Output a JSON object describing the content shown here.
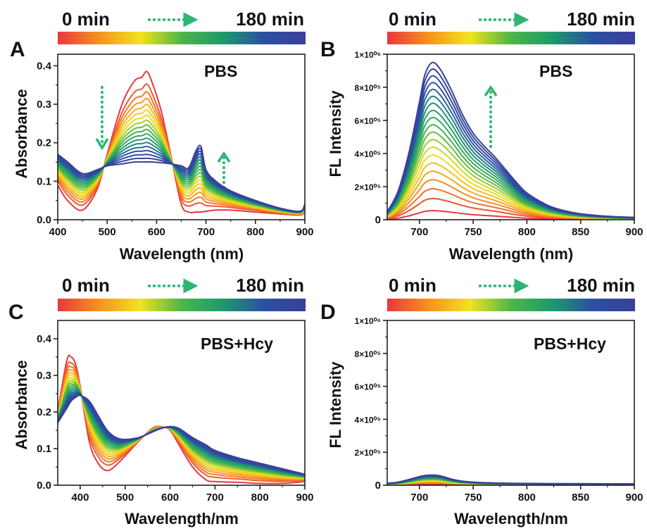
{
  "panels": [
    {
      "letter": "A",
      "start_label": "0 min",
      "end_label": "180 min",
      "annotation": "PBS"
    },
    {
      "letter": "B",
      "start_label": "0 min",
      "end_label": "180 min",
      "annotation": "PBS"
    },
    {
      "letter": "C",
      "start_label": "0 min",
      "end_label": "180 min",
      "annotation": "PBS+Hcy"
    },
    {
      "letter": "D",
      "start_label": "0 min",
      "end_label": "180 min",
      "annotation": "PBS+Hcy"
    }
  ],
  "colors": {
    "gradient": [
      "#e8383d",
      "#f6921e",
      "#f2e31d",
      "#4cb648",
      "#1d9a6c",
      "#2b4fa3",
      "#3a3f9a"
    ],
    "arrow": "#2bb673",
    "axis": "#222222"
  },
  "chart_data": [
    {
      "panel": "A",
      "type": "line",
      "xlabel": "Wavelength (nm)",
      "ylabel": "Absorbance",
      "xlim": [
        400,
        900
      ],
      "ylim": [
        0,
        0.43
      ],
      "xticks": [
        {
          "v": 400,
          "label": "400"
        },
        {
          "v": 500,
          "label": "500"
        },
        {
          "v": 600,
          "label": "600"
        },
        {
          "v": 700,
          "label": "700"
        },
        {
          "v": 800,
          "label": "800"
        },
        {
          "v": 900,
          "label": "900"
        }
      ],
      "yticks": [
        {
          "v": 0,
          "label": "0.0"
        },
        {
          "v": 0.1,
          "label": "0.1"
        },
        {
          "v": 0.2,
          "label": "0.2"
        },
        {
          "v": 0.3,
          "label": "0.3"
        },
        {
          "v": 0.4,
          "label": "0.4"
        }
      ],
      "n_series": 18,
      "x": [
        400,
        420,
        450,
        480,
        500,
        530,
        555,
        570,
        580,
        590,
        610,
        630,
        650,
        665,
        680,
        690,
        700,
        720,
        750,
        800,
        850,
        890,
        900
      ],
      "first": [
        0.09,
        0.05,
        0.025,
        0.08,
        0.17,
        0.3,
        0.36,
        0.37,
        0.385,
        0.36,
        0.28,
        0.16,
        0.04,
        0.02,
        0.02,
        0.02,
        0.022,
        0.025,
        0.025,
        0.02,
        0.015,
        0.012,
        0.02
      ],
      "last": [
        0.17,
        0.15,
        0.12,
        0.13,
        0.14,
        0.145,
        0.15,
        0.15,
        0.15,
        0.15,
        0.148,
        0.145,
        0.14,
        0.135,
        0.18,
        0.19,
        0.13,
        0.1,
        0.075,
        0.05,
        0.03,
        0.022,
        0.04
      ]
    },
    {
      "panel": "B",
      "type": "line",
      "xlabel": "Wavelength (nm)",
      "ylabel": "FL Intensity",
      "xlim": [
        670,
        900
      ],
      "ylim": [
        0,
        1000000
      ],
      "xticks": [
        {
          "v": 700,
          "label": "700"
        },
        {
          "v": 750,
          "label": "750"
        },
        {
          "v": 800,
          "label": "800"
        },
        {
          "v": 850,
          "label": "850"
        },
        {
          "v": 900,
          "label": "900"
        }
      ],
      "yticks": [
        {
          "v": 0,
          "label": "0"
        },
        {
          "v": 200000,
          "label": "2×10⁰⁵"
        },
        {
          "v": 400000,
          "label": "4×10⁰⁵"
        },
        {
          "v": 600000,
          "label": "6×10⁰⁵"
        },
        {
          "v": 800000,
          "label": "8×10⁰⁵"
        },
        {
          "v": 1000000,
          "label": "1×10⁰⁶"
        }
      ],
      "n_series": 20,
      "x": [
        670,
        680,
        690,
        700,
        705,
        712,
        720,
        730,
        740,
        750,
        760,
        770,
        780,
        790,
        800,
        820,
        840,
        860,
        880,
        900
      ],
      "shape": [
        0.05,
        0.18,
        0.42,
        0.75,
        0.92,
        1.0,
        0.95,
        0.82,
        0.67,
        0.55,
        0.47,
        0.4,
        0.32,
        0.24,
        0.17,
        0.09,
        0.05,
        0.03,
        0.02,
        0.015
      ],
      "peak_first": 55000,
      "peak_last": 950000
    },
    {
      "panel": "C",
      "type": "line",
      "xlabel": "Wavelength/nm",
      "ylabel": "Absorbance",
      "xlim": [
        350,
        900
      ],
      "ylim": [
        0,
        0.45
      ],
      "xticks": [
        {
          "v": 400,
          "label": "400"
        },
        {
          "v": 500,
          "label": "500"
        },
        {
          "v": 600,
          "label": "600"
        },
        {
          "v": 700,
          "label": "700"
        },
        {
          "v": 800,
          "label": "800"
        },
        {
          "v": 900,
          "label": "900"
        }
      ],
      "yticks": [
        {
          "v": 0,
          "label": "0.0"
        },
        {
          "v": 0.1,
          "label": "0.1"
        },
        {
          "v": 0.2,
          "label": "0.2"
        },
        {
          "v": 0.3,
          "label": "0.3"
        },
        {
          "v": 0.4,
          "label": "0.4"
        }
      ],
      "n_series": 18,
      "x": [
        350,
        370,
        380,
        390,
        400,
        420,
        440,
        460,
        480,
        500,
        530,
        560,
        580,
        600,
        620,
        650,
        680,
        700,
        750,
        800,
        850,
        900
      ],
      "first": [
        0.2,
        0.34,
        0.35,
        0.33,
        0.27,
        0.12,
        0.06,
        0.04,
        0.055,
        0.08,
        0.12,
        0.155,
        0.16,
        0.15,
        0.11,
        0.05,
        0.015,
        0.01,
        0.008,
        0.005,
        0.005,
        0.01
      ],
      "last": [
        0.17,
        0.21,
        0.23,
        0.24,
        0.245,
        0.23,
        0.19,
        0.15,
        0.13,
        0.125,
        0.13,
        0.145,
        0.155,
        0.16,
        0.155,
        0.13,
        0.11,
        0.095,
        0.075,
        0.06,
        0.045,
        0.03
      ]
    },
    {
      "panel": "D",
      "type": "line",
      "xlabel": "Wavelength/nm",
      "ylabel": "FL Intensity",
      "xlim": [
        670,
        900
      ],
      "ylim": [
        0,
        1000000
      ],
      "xticks": [
        {
          "v": 700,
          "label": "700"
        },
        {
          "v": 750,
          "label": "750"
        },
        {
          "v": 800,
          "label": "800"
        },
        {
          "v": 850,
          "label": "850"
        },
        {
          "v": 900,
          "label": "900"
        }
      ],
      "yticks": [
        {
          "v": 0,
          "label": "0"
        },
        {
          "v": 200000,
          "label": "2×10⁰⁵"
        },
        {
          "v": 400000,
          "label": "4×10⁰⁵"
        },
        {
          "v": 600000,
          "label": "6×10⁰⁵"
        },
        {
          "v": 800000,
          "label": "8×10⁰⁵"
        },
        {
          "v": 1000000,
          "label": "1×10⁰⁶"
        }
      ],
      "n_series": 10,
      "x": [
        670,
        680,
        690,
        700,
        705,
        712,
        720,
        730,
        740,
        750,
        760,
        780,
        800,
        820,
        850,
        880,
        900
      ],
      "shape": [
        0.2,
        0.3,
        0.55,
        0.85,
        0.95,
        1.0,
        0.9,
        0.6,
        0.4,
        0.3,
        0.25,
        0.2,
        0.18,
        0.16,
        0.15,
        0.14,
        0.14
      ],
      "peak_first": 5000,
      "peak_last": 62000
    }
  ]
}
